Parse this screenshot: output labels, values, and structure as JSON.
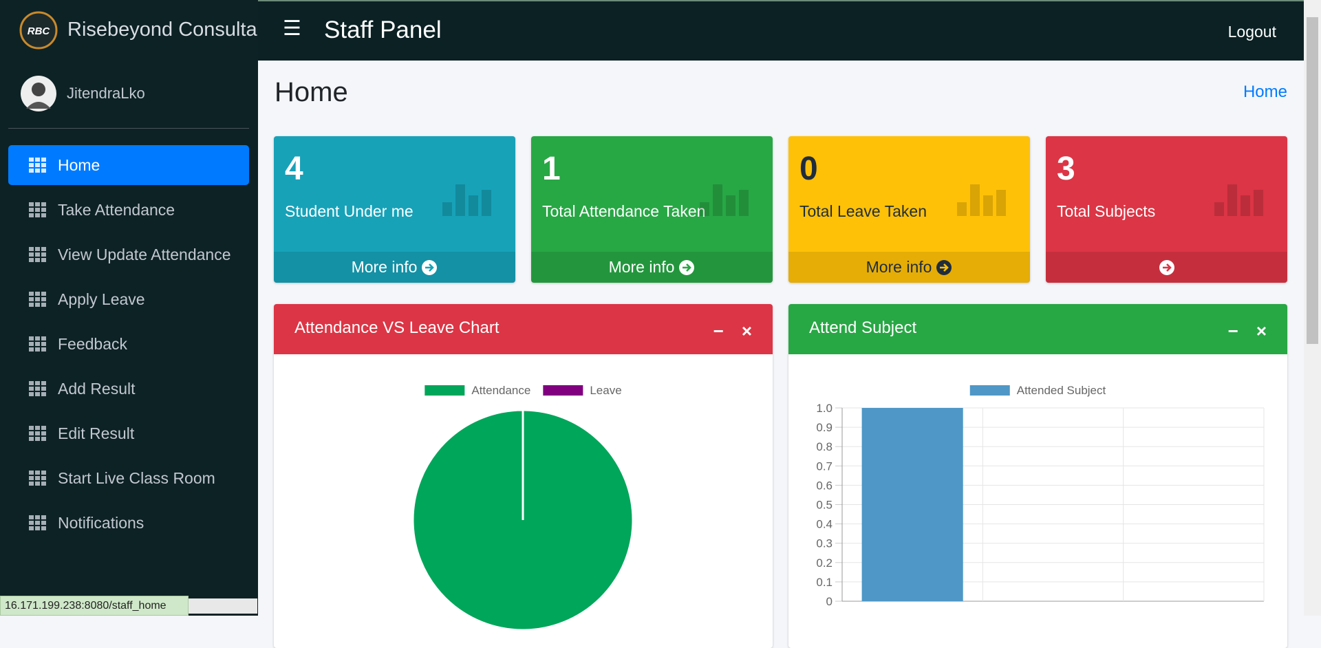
{
  "brand": "Risebeyond Consultanc",
  "user": "JitendraLko",
  "nav": [
    "Home",
    "Take Attendance",
    "View Update Attendance",
    "Apply Leave",
    "Feedback",
    "Add Result",
    "Edit Result",
    "Start Live Class Room",
    "Notifications"
  ],
  "header": {
    "title": "Staff Panel",
    "logout": "Logout"
  },
  "page": {
    "title": "Home",
    "breadcrumb": "Home"
  },
  "boxes": [
    {
      "value": 4,
      "label": "Student Under me",
      "link": "More info",
      "color": "#17a2b8"
    },
    {
      "value": 1,
      "label": "Total Attendance Taken",
      "link": "More info",
      "color": "#28a745"
    },
    {
      "value": 0,
      "label": "Total Leave Taken",
      "link": "More info",
      "color": "#ffc107"
    },
    {
      "value": 3,
      "label": "Total Subjects",
      "color": "#dc3545"
    }
  ],
  "chart_data": [
    {
      "type": "pie",
      "title": "Attendance VS Leave Chart",
      "header_color": "#dc3545",
      "categories": [
        "Attendance",
        "Leave"
      ],
      "values": [
        1,
        0
      ],
      "colors": [
        "#00a65a",
        "#800080"
      ]
    },
    {
      "type": "bar",
      "title": "Attend Subject",
      "header_color": "#28a745",
      "categories": [
        null,
        null,
        null
      ],
      "series": [
        {
          "name": "Attended Subject",
          "color": "#4e97c6",
          "values": [
            1,
            0,
            0
          ]
        }
      ],
      "ylim": [
        0,
        1
      ],
      "yticks": [
        0,
        0.1,
        0.2,
        0.3,
        0.4,
        0.5,
        0.6,
        0.7,
        0.8,
        0.9,
        {
          "value": 1,
          "label": "1.0"
        }
      ],
      "grid": true
    }
  ],
  "status": "16.171.199.238:8080/staff_home"
}
